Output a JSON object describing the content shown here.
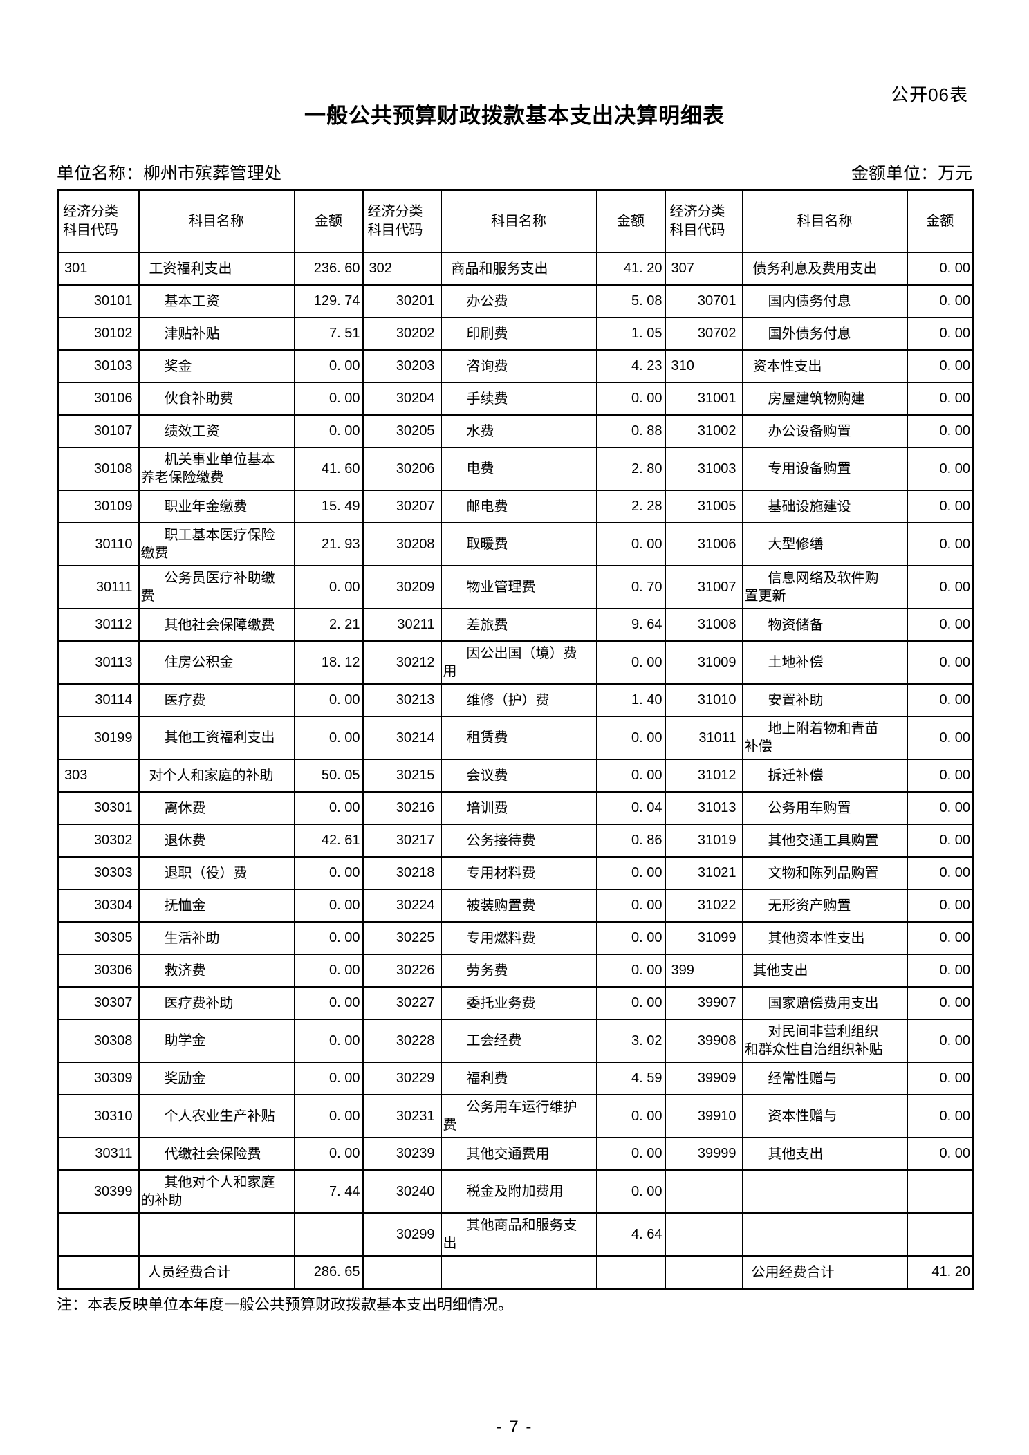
{
  "page": {
    "doc_label": "公开06表",
    "title": "一般公共预算财政拨款基本支出决算明细表",
    "unit_name": "单位名称：柳州市殡葬管理处",
    "amount_unit": "金额单位：万元",
    "note": "注：本表反映单位本年度一般公共预算财政拨款基本支出明细情况。",
    "page_number": "- 7 -"
  },
  "colors": {
    "text": "#000000",
    "border": "#000000",
    "background": "#ffffff"
  },
  "table": {
    "header": {
      "code_label": "经济分类\n科目代码",
      "name_label": "科目名称",
      "amount_label": "金额"
    },
    "rows": [
      {
        "cells": [
          {
            "level": "top",
            "code": "301",
            "name": "工资福利支出",
            "amount": "236. 60"
          },
          {
            "level": "top",
            "code": "302",
            "name": "商品和服务支出",
            "amount": "41. 20"
          },
          {
            "level": "top",
            "code": "307",
            "name": "债务利息及费用支出",
            "amount": "0. 00"
          }
        ]
      },
      {
        "cells": [
          {
            "level": "detail",
            "code": "30101",
            "name": "基本工资",
            "amount": "129. 74"
          },
          {
            "level": "detail",
            "code": "30201",
            "name": "办公费",
            "amount": "5. 08"
          },
          {
            "level": "detail",
            "code": "30701",
            "name": "国内债务付息",
            "amount": "0. 00"
          }
        ]
      },
      {
        "cells": [
          {
            "level": "detail",
            "code": "30102",
            "name": "津贴补贴",
            "amount": "7. 51"
          },
          {
            "level": "detail",
            "code": "30202",
            "name": "印刷费",
            "amount": "1. 05"
          },
          {
            "level": "detail",
            "code": "30702",
            "name": "国外债务付息",
            "amount": "0. 00"
          }
        ]
      },
      {
        "cells": [
          {
            "level": "detail",
            "code": "30103",
            "name": "奖金",
            "amount": "0. 00"
          },
          {
            "level": "detail",
            "code": "30203",
            "name": "咨询费",
            "amount": "4. 23"
          },
          {
            "level": "top",
            "code": "310",
            "name": "资本性支出",
            "amount": "0. 00"
          }
        ]
      },
      {
        "cells": [
          {
            "level": "detail",
            "code": "30106",
            "name": "伙食补助费",
            "amount": "0. 00"
          },
          {
            "level": "detail",
            "code": "30204",
            "name": "手续费",
            "amount": "0. 00"
          },
          {
            "level": "detail",
            "code": "31001",
            "name": "房屋建筑物购建",
            "amount": "0. 00"
          }
        ]
      },
      {
        "cells": [
          {
            "level": "detail",
            "code": "30107",
            "name": "绩效工资",
            "amount": "0. 00"
          },
          {
            "level": "detail",
            "code": "30205",
            "name": "水费",
            "amount": "0. 88"
          },
          {
            "level": "detail",
            "code": "31002",
            "name": "办公设备购置",
            "amount": "0. 00"
          }
        ]
      },
      {
        "cells": [
          {
            "level": "detail",
            "code": "30108",
            "name": "机关事业单位基本\n养老保险缴费",
            "amount": "41. 60"
          },
          {
            "level": "detail",
            "code": "30206",
            "name": "电费",
            "amount": "2. 80"
          },
          {
            "level": "detail",
            "code": "31003",
            "name": "专用设备购置",
            "amount": "0. 00"
          }
        ]
      },
      {
        "cells": [
          {
            "level": "detail",
            "code": "30109",
            "name": "职业年金缴费",
            "amount": "15. 49"
          },
          {
            "level": "detail",
            "code": "30207",
            "name": "邮电费",
            "amount": "2. 28"
          },
          {
            "level": "detail",
            "code": "31005",
            "name": "基础设施建设",
            "amount": "0. 00"
          }
        ]
      },
      {
        "cells": [
          {
            "level": "detail",
            "code": "30110",
            "name": "职工基本医疗保险\n缴费",
            "amount": "21. 93"
          },
          {
            "level": "detail",
            "code": "30208",
            "name": "取暖费",
            "amount": "0. 00"
          },
          {
            "level": "detail",
            "code": "31006",
            "name": "大型修缮",
            "amount": "0. 00"
          }
        ]
      },
      {
        "cells": [
          {
            "level": "detail",
            "code": "30111",
            "name": "公务员医疗补助缴\n费",
            "amount": "0. 00"
          },
          {
            "level": "detail",
            "code": "30209",
            "name": "物业管理费",
            "amount": "0. 70"
          },
          {
            "level": "detail",
            "code": "31007",
            "name": "信息网络及软件购\n置更新",
            "amount": "0. 00"
          }
        ]
      },
      {
        "cells": [
          {
            "level": "detail",
            "code": "30112",
            "name": "其他社会保障缴费",
            "amount": "2. 21"
          },
          {
            "level": "detail",
            "code": "30211",
            "name": "差旅费",
            "amount": "9. 64"
          },
          {
            "level": "detail",
            "code": "31008",
            "name": "物资储备",
            "amount": "0. 00"
          }
        ]
      },
      {
        "cells": [
          {
            "level": "detail",
            "code": "30113",
            "name": "住房公积金",
            "amount": "18. 12"
          },
          {
            "level": "detail",
            "code": "30212",
            "name": "因公出国（境）费\n用",
            "amount": "0. 00"
          },
          {
            "level": "detail",
            "code": "31009",
            "name": "土地补偿",
            "amount": "0. 00"
          }
        ]
      },
      {
        "cells": [
          {
            "level": "detail",
            "code": "30114",
            "name": "医疗费",
            "amount": "0. 00"
          },
          {
            "level": "detail",
            "code": "30213",
            "name": "维修（护）费",
            "amount": "1. 40"
          },
          {
            "level": "detail",
            "code": "31010",
            "name": "安置补助",
            "amount": "0. 00"
          }
        ]
      },
      {
        "cells": [
          {
            "level": "detail",
            "code": "30199",
            "name": "其他工资福利支出",
            "amount": "0. 00"
          },
          {
            "level": "detail",
            "code": "30214",
            "name": "租赁费",
            "amount": "0. 00"
          },
          {
            "level": "detail",
            "code": "31011",
            "name": "地上附着物和青苗\n补偿",
            "amount": "0. 00"
          }
        ]
      },
      {
        "cells": [
          {
            "level": "top",
            "code": "303",
            "name": "对个人和家庭的补助",
            "amount": "50. 05"
          },
          {
            "level": "detail",
            "code": "30215",
            "name": "会议费",
            "amount": "0. 00"
          },
          {
            "level": "detail",
            "code": "31012",
            "name": "拆迁补偿",
            "amount": "0. 00"
          }
        ]
      },
      {
        "cells": [
          {
            "level": "detail",
            "code": "30301",
            "name": "离休费",
            "amount": "0. 00"
          },
          {
            "level": "detail",
            "code": "30216",
            "name": "培训费",
            "amount": "0. 04"
          },
          {
            "level": "detail",
            "code": "31013",
            "name": "公务用车购置",
            "amount": "0. 00"
          }
        ]
      },
      {
        "cells": [
          {
            "level": "detail",
            "code": "30302",
            "name": "退休费",
            "amount": "42. 61"
          },
          {
            "level": "detail",
            "code": "30217",
            "name": "公务接待费",
            "amount": "0. 86"
          },
          {
            "level": "detail",
            "code": "31019",
            "name": "其他交通工具购置",
            "amount": "0. 00"
          }
        ]
      },
      {
        "cells": [
          {
            "level": "detail",
            "code": "30303",
            "name": "退职（役）费",
            "amount": "0. 00"
          },
          {
            "level": "detail",
            "code": "30218",
            "name": "专用材料费",
            "amount": "0. 00"
          },
          {
            "level": "detail",
            "code": "31021",
            "name": "文物和陈列品购置",
            "amount": "0. 00"
          }
        ]
      },
      {
        "cells": [
          {
            "level": "detail",
            "code": "30304",
            "name": "抚恤金",
            "amount": "0. 00"
          },
          {
            "level": "detail",
            "code": "30224",
            "name": "被装购置费",
            "amount": "0. 00"
          },
          {
            "level": "detail",
            "code": "31022",
            "name": "无形资产购置",
            "amount": "0. 00"
          }
        ]
      },
      {
        "cells": [
          {
            "level": "detail",
            "code": "30305",
            "name": "生活补助",
            "amount": "0. 00"
          },
          {
            "level": "detail",
            "code": "30225",
            "name": "专用燃料费",
            "amount": "0. 00"
          },
          {
            "level": "detail",
            "code": "31099",
            "name": "其他资本性支出",
            "amount": "0. 00"
          }
        ]
      },
      {
        "cells": [
          {
            "level": "detail",
            "code": "30306",
            "name": "救济费",
            "amount": "0. 00"
          },
          {
            "level": "detail",
            "code": "30226",
            "name": "劳务费",
            "amount": "0. 00"
          },
          {
            "level": "top",
            "code": "399",
            "name": "其他支出",
            "amount": "0. 00"
          }
        ]
      },
      {
        "cells": [
          {
            "level": "detail",
            "code": "30307",
            "name": "医疗费补助",
            "amount": "0. 00"
          },
          {
            "level": "detail",
            "code": "30227",
            "name": "委托业务费",
            "amount": "0. 00"
          },
          {
            "level": "detail",
            "code": "39907",
            "name": "国家赔偿费用支出",
            "amount": "0. 00"
          }
        ]
      },
      {
        "cells": [
          {
            "level": "detail",
            "code": "30308",
            "name": "助学金",
            "amount": "0. 00"
          },
          {
            "level": "detail",
            "code": "30228",
            "name": "工会经费",
            "amount": "3. 02"
          },
          {
            "level": "detail",
            "code": "39908",
            "name": "对民间非营利组织\n和群众性自治组织补贴",
            "amount": "0. 00"
          }
        ]
      },
      {
        "cells": [
          {
            "level": "detail",
            "code": "30309",
            "name": "奖励金",
            "amount": "0. 00"
          },
          {
            "level": "detail",
            "code": "30229",
            "name": "福利费",
            "amount": "4. 59"
          },
          {
            "level": "detail",
            "code": "39909",
            "name": "经常性赠与",
            "amount": "0. 00"
          }
        ]
      },
      {
        "cells": [
          {
            "level": "detail",
            "code": "30310",
            "name": "个人农业生产补贴",
            "amount": "0. 00"
          },
          {
            "level": "detail",
            "code": "30231",
            "name": "公务用车运行维护\n费",
            "amount": "0. 00"
          },
          {
            "level": "detail",
            "code": "39910",
            "name": "资本性赠与",
            "amount": "0. 00"
          }
        ]
      },
      {
        "cells": [
          {
            "level": "detail",
            "code": "30311",
            "name": "代缴社会保险费",
            "amount": "0. 00"
          },
          {
            "level": "detail",
            "code": "30239",
            "name": "其他交通费用",
            "amount": "0. 00"
          },
          {
            "level": "detail",
            "code": "39999",
            "name": "其他支出",
            "amount": "0. 00"
          }
        ]
      },
      {
        "cells": [
          {
            "level": "detail",
            "code": "30399",
            "name": "其他对个人和家庭\n的补助",
            "amount": "7. 44"
          },
          {
            "level": "detail",
            "code": "30240",
            "name": "税金及附加费用",
            "amount": "0. 00"
          },
          {
            "level": "empty",
            "code": "",
            "name": "",
            "amount": ""
          }
        ]
      },
      {
        "cells": [
          {
            "level": "empty",
            "code": "",
            "name": "",
            "amount": ""
          },
          {
            "level": "detail",
            "code": "30299",
            "name": "其他商品和服务支\n出",
            "amount": "4. 64"
          },
          {
            "level": "empty",
            "code": "",
            "name": "",
            "amount": ""
          }
        ]
      },
      {
        "cells": [
          {
            "level": "total",
            "code": "",
            "name": "人员经费合计",
            "amount": "286. 65"
          },
          {
            "level": "empty",
            "code": "",
            "name": "",
            "amount": ""
          },
          {
            "level": "total",
            "code": "",
            "name": "公用经费合计",
            "amount": "41. 20"
          }
        ]
      }
    ]
  }
}
